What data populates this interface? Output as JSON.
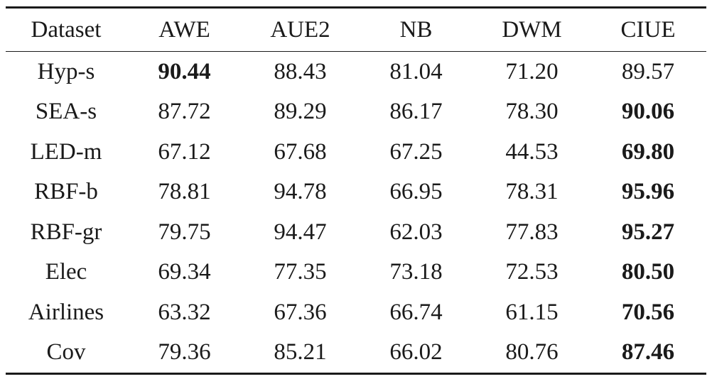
{
  "table": {
    "headers": [
      "Dataset",
      "AWE",
      "AUE2",
      "NB",
      "DWM",
      "CIUE"
    ],
    "rows": [
      {
        "cells": [
          "Hyp-s",
          "90.44",
          "88.43",
          "81.04",
          "71.20",
          "89.57"
        ],
        "best": [
          1
        ]
      },
      {
        "cells": [
          "SEA-s",
          "87.72",
          "89.29",
          "86.17",
          "78.30",
          "90.06"
        ],
        "best": [
          5
        ]
      },
      {
        "cells": [
          "LED-m",
          "67.12",
          "67.68",
          "67.25",
          "44.53",
          "69.80"
        ],
        "best": [
          5
        ]
      },
      {
        "cells": [
          "RBF-b",
          "78.81",
          "94.78",
          "66.95",
          "78.31",
          "95.96"
        ],
        "best": [
          5
        ]
      },
      {
        "cells": [
          "RBF-gr",
          "79.75",
          "94.47",
          "62.03",
          "77.83",
          "95.27"
        ],
        "best": [
          5
        ]
      },
      {
        "cells": [
          "Elec",
          "69.34",
          "77.35",
          "73.18",
          "72.53",
          "80.50"
        ],
        "best": [
          5
        ]
      },
      {
        "cells": [
          "Airlines",
          "63.32",
          "67.36",
          "66.74",
          "61.15",
          "70.56"
        ],
        "best": [
          5
        ]
      },
      {
        "cells": [
          "Cov",
          "79.36",
          "85.21",
          "66.02",
          "80.76",
          "87.46"
        ],
        "best": [
          5
        ]
      }
    ]
  }
}
